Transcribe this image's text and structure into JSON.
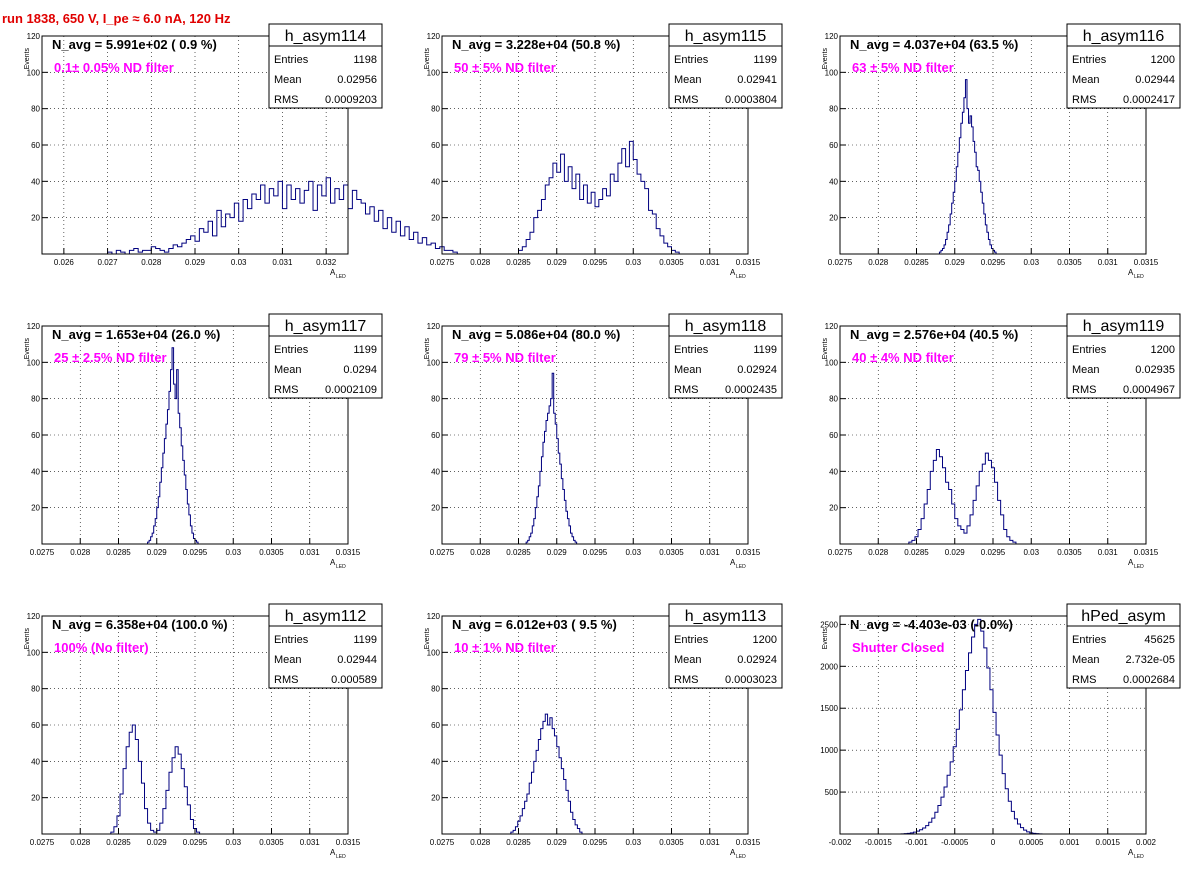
{
  "page": {
    "title": "run 1838,   650 V, I_pe ≈ 6.0 nA, 120 Hz",
    "title_color": "#e00000"
  },
  "colors": {
    "hist_line": "#00007f",
    "annotation": "#ff00ff"
  },
  "chart_data": [
    {
      "type": "histogram",
      "name": "h_asym114",
      "navg": "N_avg = 5.991e+02 ( 0.9 %)",
      "label": "0.1± 0.05% ND filter",
      "entries": "1198",
      "mean": "0.02956",
      "rms": "0.0009203",
      "xlabel": "A",
      "xlabel_sub": "LED",
      "ylabel": "Events",
      "xlim": [
        0.0255,
        0.0325
      ],
      "ylim": [
        0,
        120
      ],
      "grid": true,
      "xticks": [
        "0.026",
        "0.027",
        "0.028",
        "0.029",
        "0.03",
        "0.031",
        "0.032"
      ],
      "yticks": [
        "20",
        "40",
        "60",
        "80",
        "100",
        "120"
      ],
      "bin_start": 0.027,
      "bin_width": 0.0001,
      "values": [
        1,
        0,
        2,
        1,
        0,
        2,
        3,
        1,
        2,
        2,
        4,
        3,
        2,
        1,
        3,
        5,
        4,
        6,
        8,
        10,
        7,
        14,
        12,
        18,
        10,
        24,
        15,
        22,
        20,
        28,
        18,
        30,
        25,
        33,
        30,
        38,
        28,
        36,
        32,
        40,
        25,
        38,
        30,
        36,
        28,
        35,
        40,
        24,
        38,
        32,
        42,
        28,
        36,
        30,
        38,
        25,
        35,
        30,
        28,
        22,
        26,
        18,
        24,
        14,
        20,
        12,
        18,
        10,
        15,
        8,
        12,
        6,
        9,
        5,
        6,
        3,
        4,
        2,
        2,
        1
      ]
    },
    {
      "type": "histogram",
      "name": "h_asym115",
      "navg": "N_avg = 3.228e+04 (50.8 %)",
      "label": "50 ± 5% ND filter",
      "entries": "1199",
      "mean": "0.02941",
      "rms": "0.0003804",
      "xlabel": "A",
      "xlabel_sub": "LED",
      "ylabel": "Events",
      "xlim": [
        0.0275,
        0.0315
      ],
      "ylim": [
        0,
        120
      ],
      "grid": true,
      "xticks": [
        "0.0275",
        "0.028",
        "0.0285",
        "0.029",
        "0.0295",
        "0.03",
        "0.0305",
        "0.031",
        "0.0315"
      ],
      "yticks": [
        "20",
        "40",
        "60",
        "80",
        "100",
        "120"
      ],
      "bin_start": 0.0285,
      "bin_width": 5e-05,
      "values": [
        2,
        4,
        8,
        12,
        20,
        24,
        30,
        38,
        42,
        50,
        45,
        55,
        40,
        48,
        36,
        44,
        30,
        38,
        28,
        34,
        26,
        30,
        36,
        32,
        44,
        40,
        50,
        58,
        48,
        62,
        52,
        44,
        40,
        36,
        24,
        22,
        14,
        10,
        6,
        4,
        2,
        1
      ]
    },
    {
      "type": "histogram",
      "name": "h_asym116",
      "navg": "N_avg = 4.037e+04 (63.5 %)",
      "label": "63 ± 5% ND filter",
      "entries": "1200",
      "mean": "0.02944",
      "rms": "0.0002417",
      "xlabel": "A",
      "xlabel_sub": "LED",
      "ylabel": "Events",
      "xlim": [
        0.0275,
        0.0315
      ],
      "ylim": [
        0,
        120
      ],
      "grid": true,
      "xticks": [
        "0.0275",
        "0.028",
        "0.0285",
        "0.029",
        "0.0295",
        "0.03",
        "0.0305",
        "0.031",
        "0.0315"
      ],
      "yticks": [
        "20",
        "40",
        "60",
        "80",
        "100",
        "120"
      ],
      "bin_start": 0.0288,
      "bin_width": 2e-05,
      "values": [
        1,
        2,
        3,
        5,
        8,
        12,
        16,
        22,
        28,
        34,
        40,
        48,
        56,
        64,
        72,
        78,
        86,
        96,
        80,
        72,
        76,
        70,
        62,
        56,
        48,
        46,
        40,
        34,
        28,
        22,
        16,
        12,
        8,
        5,
        3,
        2,
        1
      ]
    },
    {
      "type": "histogram",
      "name": "h_asym117",
      "navg": "N_avg = 1.653e+04 (26.0 %)",
      "label": "25 ± 2.5% ND filter",
      "entries": "1199",
      "mean": "0.0294",
      "rms": "0.0002109",
      "xlabel": "A",
      "xlabel_sub": "LED",
      "ylabel": "Events",
      "xlim": [
        0.0275,
        0.0315
      ],
      "ylim": [
        0,
        120
      ],
      "grid": true,
      "xticks": [
        "0.0275",
        "0.028",
        "0.0285",
        "0.029",
        "0.0295",
        "0.03",
        "0.0305",
        "0.031",
        "0.0315"
      ],
      "yticks": [
        "20",
        "40",
        "60",
        "80",
        "100",
        "120"
      ],
      "bin_start": 0.02888,
      "bin_width": 2e-05,
      "values": [
        1,
        2,
        4,
        6,
        10,
        14,
        20,
        26,
        34,
        42,
        50,
        58,
        66,
        74,
        84,
        96,
        108,
        88,
        80,
        96,
        72,
        64,
        54,
        46,
        38,
        30,
        22,
        16,
        10,
        6,
        3,
        2,
        1
      ]
    },
    {
      "type": "histogram",
      "name": "h_asym118",
      "navg": "N_avg = 5.086e+04 (80.0 %)",
      "label": "79 ± 5% ND filter",
      "entries": "1199",
      "mean": "0.02924",
      "rms": "0.0002435",
      "xlabel": "A",
      "xlabel_sub": "LED",
      "ylabel": "Events",
      "xlim": [
        0.0275,
        0.0315
      ],
      "ylim": [
        0,
        120
      ],
      "grid": true,
      "xticks": [
        "0.0275",
        "0.028",
        "0.0285",
        "0.029",
        "0.0295",
        "0.03",
        "0.0305",
        "0.031",
        "0.0315"
      ],
      "yticks": [
        "20",
        "40",
        "60",
        "80",
        "100",
        "120"
      ],
      "bin_start": 0.0286,
      "bin_width": 2e-05,
      "values": [
        1,
        2,
        4,
        6,
        10,
        14,
        20,
        26,
        32,
        40,
        48,
        56,
        62,
        68,
        72,
        76,
        80,
        94,
        72,
        66,
        58,
        50,
        44,
        36,
        30,
        24,
        18,
        14,
        10,
        6,
        4,
        2,
        1
      ]
    },
    {
      "type": "histogram",
      "name": "h_asym119",
      "navg": "N_avg = 2.576e+04 (40.5 %)",
      "label": "40 ± 4% ND filter",
      "entries": "1200",
      "mean": "0.02935",
      "rms": "0.0004967",
      "xlabel": "A",
      "xlabel_sub": "LED",
      "ylabel": "Events",
      "xlim": [
        0.0275,
        0.0315
      ],
      "ylim": [
        0,
        120
      ],
      "grid": true,
      "xticks": [
        "0.0275",
        "0.028",
        "0.0285",
        "0.029",
        "0.0295",
        "0.03",
        "0.0305",
        "0.031",
        "0.0315"
      ],
      "yticks": [
        "20",
        "40",
        "60",
        "80",
        "100",
        "120"
      ],
      "bin_start": 0.0284,
      "bin_width": 4e-05,
      "values": [
        1,
        2,
        4,
        8,
        14,
        22,
        30,
        40,
        46,
        52,
        48,
        42,
        34,
        30,
        22,
        14,
        10,
        8,
        6,
        10,
        16,
        24,
        32,
        40,
        44,
        50,
        46,
        42,
        34,
        24,
        16,
        8,
        4,
        2,
        1
      ]
    },
    {
      "type": "histogram",
      "name": "h_asym112",
      "navg": "N_avg = 6.358e+04 (100.0 %)",
      "label": "100% (No filter)",
      "entries": "1199",
      "mean": "0.02944",
      "rms": "0.000589",
      "xlabel": "A",
      "xlabel_sub": "LED",
      "ylabel": "Events",
      "xlim": [
        0.0275,
        0.0315
      ],
      "ylim": [
        0,
        120
      ],
      "grid": true,
      "xticks": [
        "0.0275",
        "0.028",
        "0.0285",
        "0.029",
        "0.0295",
        "0.03",
        "0.0305",
        "0.031",
        "0.0315"
      ],
      "yticks": [
        "20",
        "40",
        "60",
        "80",
        "100",
        "120"
      ],
      "bin_start": 0.0284,
      "bin_width": 4e-05,
      "values": [
        1,
        4,
        10,
        22,
        36,
        48,
        56,
        60,
        52,
        40,
        28,
        14,
        6,
        2,
        1,
        2,
        6,
        14,
        24,
        34,
        42,
        48,
        44,
        36,
        26,
        16,
        8,
        3,
        1
      ]
    },
    {
      "type": "histogram",
      "name": "h_asym113",
      "navg": "N_avg = 6.012e+03 ( 9.5 %)",
      "label": "10 ± 1% ND filter",
      "entries": "1200",
      "mean": "0.02924",
      "rms": "0.0003023",
      "xlabel": "A",
      "xlabel_sub": "LED",
      "ylabel": "Events",
      "xlim": [
        0.0275,
        0.0315
      ],
      "ylim": [
        0,
        120
      ],
      "grid": true,
      "xticks": [
        "0.0275",
        "0.028",
        "0.0285",
        "0.029",
        "0.0295",
        "0.03",
        "0.0305",
        "0.031",
        "0.0315"
      ],
      "yticks": [
        "20",
        "40",
        "60",
        "80",
        "100",
        "120"
      ],
      "bin_start": 0.0284,
      "bin_width": 3e-05,
      "values": [
        1,
        2,
        4,
        7,
        10,
        14,
        18,
        22,
        28,
        34,
        40,
        46,
        52,
        58,
        62,
        66,
        60,
        64,
        58,
        54,
        48,
        42,
        36,
        30,
        24,
        18,
        12,
        8,
        5,
        3,
        1
      ]
    },
    {
      "type": "histogram",
      "name": "hPed_asym",
      "navg": "N_avg = -4.403e-03 (-0.0%)",
      "label": "Shutter Closed",
      "entries": "45625",
      "mean": "2.732e-05",
      "rms": "0.0002684",
      "xlabel": "A",
      "xlabel_sub": "LED",
      "ylabel": "Events",
      "xlim": [
        -0.002,
        0.002
      ],
      "ylim": [
        0,
        2600
      ],
      "grid": true,
      "xticks": [
        "-0.002",
        "-0.0015",
        "-0.001",
        "-0.0005",
        "0",
        "0.0005",
        "0.001",
        "0.0015",
        "0.002"
      ],
      "yticks": [
        "500",
        "1000",
        "1500",
        "2000",
        "2500"
      ],
      "bin_start": -0.0012,
      "bin_width": 4e-05,
      "values": [
        2,
        4,
        8,
        14,
        22,
        34,
        50,
        72,
        100,
        140,
        190,
        260,
        340,
        440,
        560,
        700,
        860,
        1040,
        1250,
        1480,
        1720,
        1950,
        2160,
        2350,
        2500,
        2560,
        2420,
        2220,
        1980,
        1720,
        1450,
        1180,
        940,
        720,
        540,
        390,
        270,
        180,
        120,
        76,
        46,
        26,
        14,
        8,
        4,
        2
      ]
    }
  ]
}
